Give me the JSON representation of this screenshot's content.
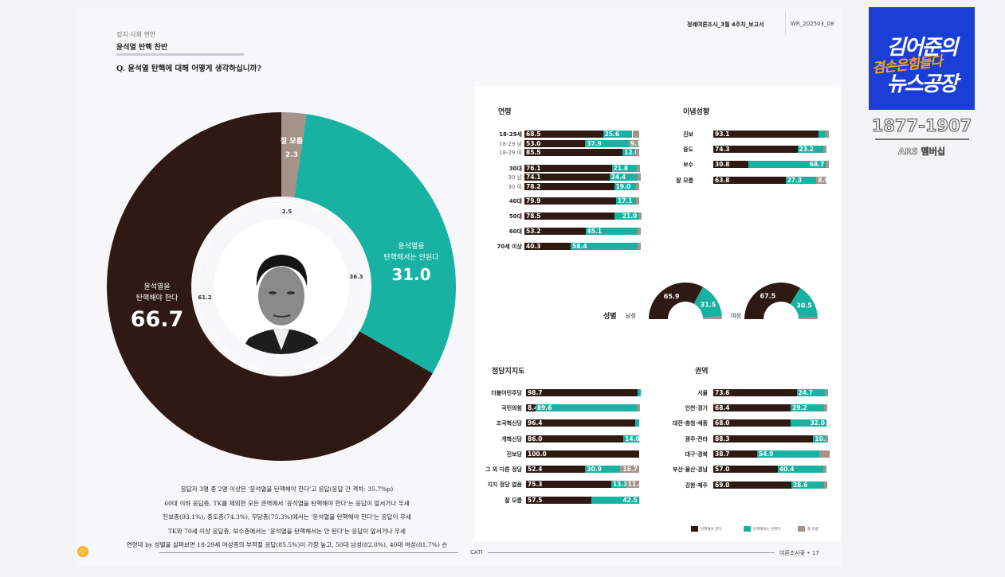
{
  "header": {
    "section": "정치·사회 현안",
    "title": "윤석열 탄핵 찬반",
    "question": "Q. 윤석열 탄핵에 대해 어떻게 생각하십니까?",
    "report_name": "정례여론조사_3월 4주차_보고서",
    "report_code": "WR_202503_08"
  },
  "colors": {
    "impeach": "#2e1a12",
    "oppose": "#18b2a3",
    "unknown": "#a59289"
  },
  "legend": [
    "탄핵해야 한다",
    "탄핵해서는 안된다",
    "잘 모름"
  ],
  "chart_data": [
    {
      "type": "pie",
      "title": "",
      "slices": [
        {
          "name": "잘 모름",
          "value": 2.3,
          "color": "#a59289"
        },
        {
          "name": "윤석열을 탄핵해서는 안된다",
          "value": 31.0,
          "color": "#18b2a3"
        },
        {
          "name": "윤석열을 탄핵해야 한다",
          "value": 66.7,
          "color": "#2e1a12"
        }
      ],
      "previous_values": [
        2.5,
        36.3,
        61.2
      ],
      "labels": {
        "unknown_name": "잘 모름",
        "unknown_value": "2.3",
        "oppose_name_1": "윤석열을",
        "oppose_name_2": "탄핵해서는 안된다",
        "oppose_value": "31.0",
        "impeach_name_1": "윤석열을",
        "impeach_name_2": "탄핵해야 한다",
        "impeach_value": "66.7",
        "prev_unknown": "2.5",
        "prev_oppose": "36.3",
        "prev_impeach": "61.2"
      }
    },
    {
      "type": "bar",
      "stacked": true,
      "title": "연령",
      "rows": [
        {
          "label": "18-29세",
          "values": [
            68.5,
            25.6,
            5.9
          ]
        },
        {
          "label": "18-29 남",
          "values": [
            53.0,
            37.9,
            9.1
          ],
          "sub": true
        },
        {
          "label": "18-29 여",
          "values": [
            85.5,
            12.0
          ],
          "sub": true
        },
        {
          "label": "30대",
          "values": [
            76.1,
            21.8
          ]
        },
        {
          "label": "30 남",
          "values": [
            74.1,
            24.4
          ],
          "sub": true
        },
        {
          "label": "30 여",
          "values": [
            78.2,
            19.0
          ],
          "sub": true
        },
        {
          "label": "40대",
          "values": [
            79.9,
            17.1
          ]
        },
        {
          "label": "50대",
          "values": [
            78.5,
            21.0
          ]
        },
        {
          "label": "60대",
          "values": [
            53.2,
            45.1
          ]
        },
        {
          "label": "70세 이상",
          "values": [
            40.3,
            58.4
          ]
        }
      ]
    },
    {
      "type": "bar",
      "stacked": true,
      "title": "이념성향",
      "rows": [
        {
          "label": "진보",
          "values": [
            93.1,
            6.4
          ]
        },
        {
          "label": "중도",
          "values": [
            74.3,
            23.2
          ]
        },
        {
          "label": "보수",
          "values": [
            30.8,
            68.7
          ]
        },
        {
          "label": "잘 모름",
          "values": [
            63.8,
            27.3,
            8.9
          ]
        }
      ]
    },
    {
      "type": "pie",
      "title": "성별",
      "half": true,
      "groups": [
        {
          "label": "남성",
          "values": [
            65.9,
            31.5
          ]
        },
        {
          "label": "여성",
          "values": [
            67.5,
            30.5
          ]
        }
      ]
    },
    {
      "type": "bar",
      "stacked": true,
      "title": "정당지지도",
      "rows": [
        {
          "label": "더불어민주당",
          "values": [
            98.7
          ]
        },
        {
          "label": "국민의힘",
          "values": [
            8.4,
            89.6
          ]
        },
        {
          "label": "조국혁신당",
          "values": [
            96.4
          ]
        },
        {
          "label": "개혁신당",
          "values": [
            86.0,
            14.0
          ]
        },
        {
          "label": "진보당",
          "values": [
            100.0
          ]
        },
        {
          "label": "그 외 다른 정당",
          "values": [
            52.4,
            30.9,
            16.7
          ]
        },
        {
          "label": "지지 정당 없음",
          "values": [
            75.3,
            13.3,
            11.4
          ]
        },
        {
          "label": "잘 모름",
          "values": [
            57.5,
            42.5
          ]
        }
      ]
    },
    {
      "type": "bar",
      "stacked": true,
      "title": "권역",
      "rows": [
        {
          "label": "서울",
          "values": [
            73.6,
            24.7
          ]
        },
        {
          "label": "인천·경기",
          "values": [
            68.4,
            29.2
          ]
        },
        {
          "label": "대전·충청·세종",
          "values": [
            68.0,
            32.0
          ]
        },
        {
          "label": "광주·전라",
          "values": [
            88.3,
            10.5
          ]
        },
        {
          "label": "대구·경북",
          "values": [
            38.7,
            54.9,
            6.3
          ]
        },
        {
          "label": "부산·울산·경남",
          "values": [
            57.0,
            40.4
          ]
        },
        {
          "label": "강원·제주",
          "values": [
            69.0,
            28.6
          ]
        }
      ]
    }
  ],
  "summary": [
    "응답자 3명 중 2명 이상은 '윤석열을 탄핵해야 한다'고 응답(응답 간 격차: 35.7%p)",
    "60대 이하 응답층, TK를 제외한 모든 권역에서 '윤석열을 탄핵해야 한다'는 응답이 앞서거나 우세",
    "진보층(93.1%), 중도층(74.3%), 무당층(75.3%)에서는 '윤석열을 탄핵해야 한다'는 응답이 우세",
    "TK와 70세 이상 응답층, 보수층에서는 '윤석열을 탄핵해서는 안 된다'는 응답이 앞서거나 우세",
    "연령대 by 성별을 살펴보면 18-29세 여성층의 부적절 응답(85.5%)이 가장 높고, 50대 남성(82.0%), 40대 여성(81.7%) 순"
  ],
  "footer": {
    "method": "CATI",
    "page": "여론조사꽃 • 17"
  },
  "overlay": {
    "logo_line1": "김어준의",
    "logo_line2": "겸손은힘들다",
    "logo_line3": "뉴스공장",
    "phone": "1877-1907",
    "ars": "ARS 멤버십"
  }
}
